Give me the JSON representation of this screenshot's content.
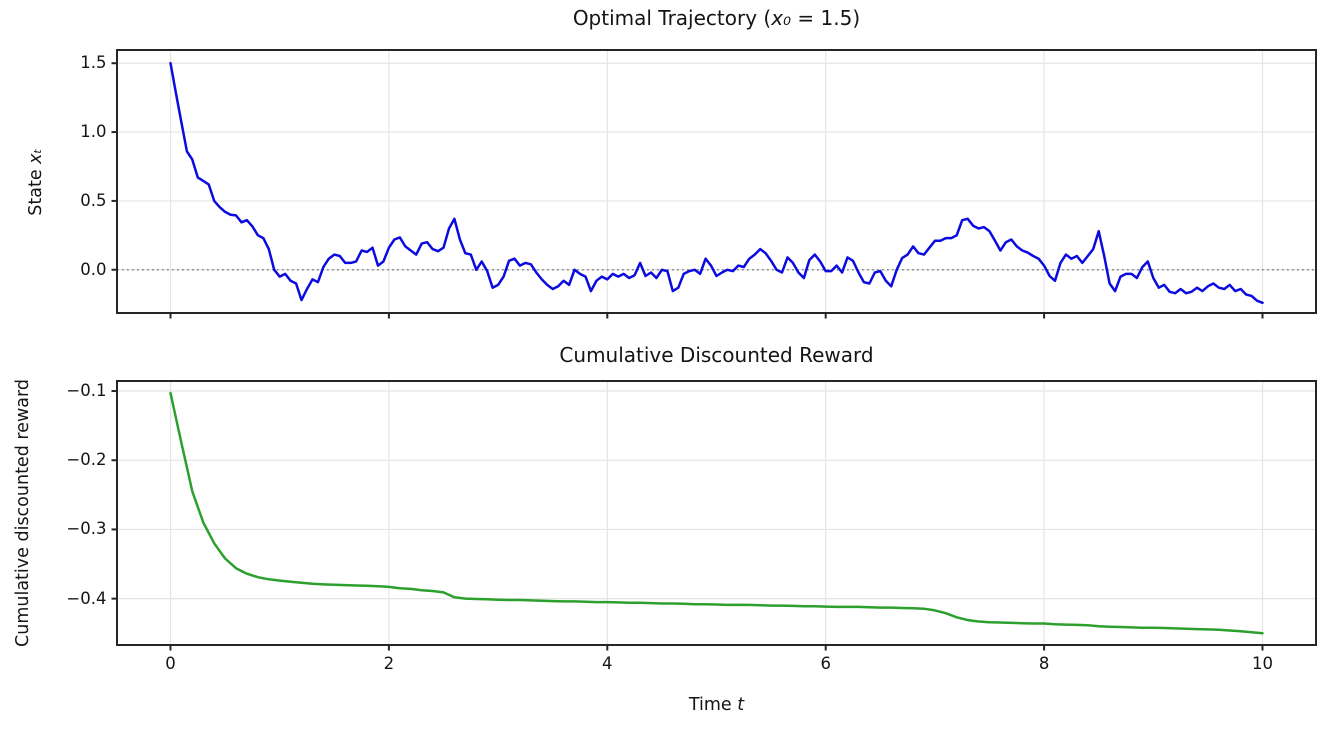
{
  "figure": {
    "background": "#ffffff",
    "text_color": "#151515",
    "grid_color": "#e4e4e4",
    "spine_color": "#262626"
  },
  "chart_data": [
    {
      "id": "optimal_trajectory",
      "type": "line",
      "title": "Optimal Trajectory (x₀ = 1.5)",
      "title_parts": {
        "prefix": "Optimal Trajectory (",
        "var": "x₀",
        "rest": " = 1.5",
        "suffix": ")"
      },
      "ylabel": "State xₜ",
      "ylabel_parts": {
        "prefix": "State ",
        "var": "xₜ"
      },
      "xlabel": "",
      "xlim": [
        -0.49,
        10.49
      ],
      "ylim": [
        -0.314,
        1.596
      ],
      "xticks": [
        0,
        2,
        4,
        6,
        8,
        10
      ],
      "xtick_labels": [],
      "yticks": [
        0.0,
        0.5,
        1.0,
        1.5
      ],
      "ytick_labels": [
        "0.0",
        "0.5",
        "1.0",
        "1.5"
      ],
      "grid": true,
      "legend": null,
      "zero_line": {
        "value": 0.0,
        "color": "#8a8a8a",
        "style": "dotted"
      },
      "line_color": "#0b0be0",
      "t_start": 0.0,
      "t_step": 0.05,
      "values": [
        1.5,
        1.28,
        1.07,
        0.86,
        0.8,
        0.67,
        0.645,
        0.62,
        0.5,
        0.455,
        0.42,
        0.4,
        0.395,
        0.345,
        0.36,
        0.315,
        0.25,
        0.23,
        0.15,
        0.0,
        -0.05,
        -0.03,
        -0.08,
        -0.1,
        -0.22,
        -0.14,
        -0.07,
        -0.09,
        0.02,
        0.08,
        0.11,
        0.1,
        0.05,
        0.05,
        0.06,
        0.14,
        0.13,
        0.16,
        0.03,
        0.06,
        0.16,
        0.22,
        0.235,
        0.17,
        0.14,
        0.11,
        0.19,
        0.2,
        0.15,
        0.135,
        0.16,
        0.3,
        0.37,
        0.22,
        0.12,
        0.11,
        0.0,
        0.06,
        -0.01,
        -0.13,
        -0.11,
        -0.05,
        0.065,
        0.08,
        0.03,
        0.05,
        0.04,
        -0.02,
        -0.07,
        -0.11,
        -0.14,
        -0.12,
        -0.08,
        -0.11,
        0.0,
        -0.03,
        -0.05,
        -0.155,
        -0.08,
        -0.05,
        -0.07,
        -0.03,
        -0.05,
        -0.03,
        -0.06,
        -0.04,
        0.05,
        -0.045,
        -0.02,
        -0.06,
        0.0,
        -0.01,
        -0.155,
        -0.13,
        -0.03,
        -0.01,
        0.0,
        -0.03,
        0.08,
        0.03,
        -0.045,
        -0.02,
        0.0,
        -0.01,
        0.03,
        0.02,
        0.08,
        0.11,
        0.15,
        0.12,
        0.065,
        0.0,
        -0.02,
        0.09,
        0.05,
        -0.02,
        -0.06,
        0.07,
        0.11,
        0.06,
        -0.01,
        -0.01,
        0.03,
        -0.02,
        0.09,
        0.065,
        -0.02,
        -0.09,
        -0.1,
        -0.02,
        -0.01,
        -0.08,
        -0.12,
        0.0,
        0.085,
        0.11,
        0.17,
        0.12,
        0.11,
        0.16,
        0.21,
        0.21,
        0.23,
        0.23,
        0.25,
        0.36,
        0.37,
        0.32,
        0.3,
        0.31,
        0.28,
        0.21,
        0.14,
        0.2,
        0.22,
        0.17,
        0.14,
        0.125,
        0.1,
        0.08,
        0.03,
        -0.045,
        -0.08,
        0.05,
        0.11,
        0.08,
        0.1,
        0.05,
        0.1,
        0.15,
        0.28,
        0.1,
        -0.1,
        -0.155,
        -0.05,
        -0.03,
        -0.03,
        -0.06,
        0.02,
        0.06,
        -0.06,
        -0.13,
        -0.11,
        -0.16,
        -0.17,
        -0.14,
        -0.17,
        -0.16,
        -0.13,
        -0.155,
        -0.12,
        -0.1,
        -0.13,
        -0.14,
        -0.11,
        -0.155,
        -0.14,
        -0.18,
        -0.19,
        -0.225,
        -0.24
      ]
    },
    {
      "id": "cumulative_discounted_reward",
      "type": "line",
      "title": "Cumulative Discounted Reward",
      "ylabel": "Cumulative discounted reward",
      "xlabel": "Time t",
      "xlabel_parts": {
        "prefix": "Time ",
        "var": "t"
      },
      "xlim": [
        -0.49,
        10.49
      ],
      "ylim": [
        -0.467,
        -0.0855
      ],
      "xticks": [
        0,
        2,
        4,
        6,
        8,
        10
      ],
      "xtick_labels": [
        "0",
        "2",
        "4",
        "6",
        "8",
        "10"
      ],
      "yticks": [
        -0.4,
        -0.3,
        -0.2,
        -0.1
      ],
      "ytick_labels": [
        "−0.4",
        "−0.3",
        "−0.2",
        "−0.1"
      ],
      "grid": true,
      "legend": null,
      "line_color": "#2ca02c",
      "t_start": 0.0,
      "t_step": 0.1,
      "values": [
        -0.103,
        -0.175,
        -0.245,
        -0.29,
        -0.32,
        -0.342,
        -0.356,
        -0.364,
        -0.369,
        -0.372,
        -0.374,
        -0.3755,
        -0.377,
        -0.3785,
        -0.3795,
        -0.38,
        -0.3805,
        -0.381,
        -0.3815,
        -0.382,
        -0.383,
        -0.385,
        -0.386,
        -0.388,
        -0.389,
        -0.391,
        -0.398,
        -0.4,
        -0.4005,
        -0.401,
        -0.4015,
        -0.402,
        -0.402,
        -0.4025,
        -0.403,
        -0.4035,
        -0.404,
        -0.404,
        -0.4045,
        -0.405,
        -0.405,
        -0.4055,
        -0.406,
        -0.406,
        -0.4065,
        -0.407,
        -0.407,
        -0.4075,
        -0.408,
        -0.408,
        -0.4085,
        -0.409,
        -0.409,
        -0.409,
        -0.4095,
        -0.41,
        -0.41,
        -0.4105,
        -0.411,
        -0.411,
        -0.4115,
        -0.412,
        -0.412,
        -0.412,
        -0.4125,
        -0.413,
        -0.413,
        -0.4135,
        -0.414,
        -0.4145,
        -0.417,
        -0.421,
        -0.427,
        -0.431,
        -0.433,
        -0.434,
        -0.4345,
        -0.435,
        -0.4355,
        -0.436,
        -0.436,
        -0.437,
        -0.4375,
        -0.438,
        -0.4385,
        -0.44,
        -0.4405,
        -0.441,
        -0.4415,
        -0.442,
        -0.442,
        -0.4425,
        -0.443,
        -0.4435,
        -0.444,
        -0.4445,
        -0.445,
        -0.446,
        -0.447,
        -0.4485,
        -0.45
      ]
    }
  ]
}
